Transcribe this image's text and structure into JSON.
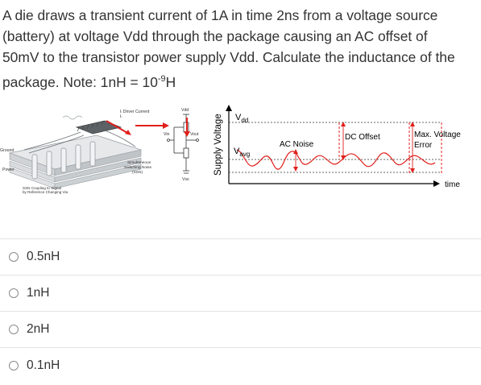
{
  "question": {
    "line1": "A die draws a transient current of 1A in time 2ns from a voltage source",
    "line2": "(battery) at voltage Vdd through the package causing an AC offset of",
    "line3": "50mV to the transistor power supply Vdd.  Calculate the inductance of the",
    "line4_prefix": "package. Note: 1nH = 10",
    "line4_sup": "-9",
    "line4_suffix": "H"
  },
  "figure_left": {
    "driver_current": "Iₗ Driver Current",
    "il": "Iₗ",
    "ground": "Ground",
    "power": "Power",
    "ssn_coupling_1": "SSN Coupling to Signal",
    "ssn_coupling_2": "by Reference Changing Via",
    "simultaneous_1": "Simultaneous",
    "simultaneous_2": "Switching Noise",
    "simultaneous_3": "(SSN)",
    "vdd": "Vdd",
    "vin": "Vin",
    "vout": "Vout",
    "vss": "Vss"
  },
  "figure_right": {
    "ylabel": "Supply Voltage",
    "vdd_main": "V",
    "vdd_sub": "dd",
    "vavg_main": "V",
    "vavg_sub": "avg",
    "ac_noise": "AC Noise",
    "dc_offset": "DC Offset",
    "max_voltage_1": "Max. Voltage",
    "max_voltage_2": "Error",
    "time": "time"
  },
  "colors": {
    "red": "#e0201c",
    "text": "#333333",
    "axis": "#000000"
  },
  "options": [
    {
      "label": "0.5nH"
    },
    {
      "label": "1nH"
    },
    {
      "label": "2nH"
    },
    {
      "label": "0.1nH"
    }
  ]
}
